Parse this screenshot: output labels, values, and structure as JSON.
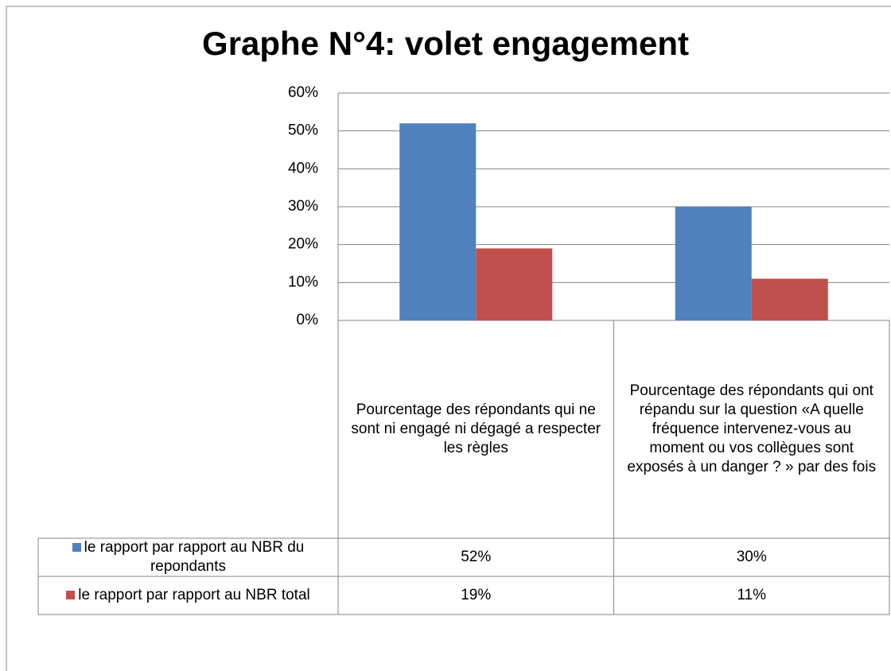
{
  "chart_data": {
    "type": "bar",
    "title": "Graphe N°4: volet engagement",
    "categories": [
      "Pourcentage des répondants qui ne sont ni engagé ni dégagé a respecter les règles",
      "Pourcentage des répondants qui ont répandu sur la question «A quelle fréquence intervenez-vous au moment ou vos collègues sont exposés à un danger ? » par des fois"
    ],
    "series": [
      {
        "name": "le rapport par rapport  au NBR du repondants",
        "color": "#4f81bd",
        "values": [
          52,
          30
        ],
        "value_labels": [
          "52%",
          "30%"
        ]
      },
      {
        "name": "le rapport par rapport  au NBR total",
        "color": "#c0504d",
        "values": [
          19,
          11
        ],
        "value_labels": [
          "19%",
          "11%"
        ]
      }
    ],
    "ylim": [
      0,
      60
    ],
    "yticks": [
      {
        "value": 0,
        "label": "0%"
      },
      {
        "value": 10,
        "label": "10%"
      },
      {
        "value": 20,
        "label": "20%"
      },
      {
        "value": 30,
        "label": "30%"
      },
      {
        "value": 40,
        "label": "40%"
      },
      {
        "value": 50,
        "label": "50%"
      },
      {
        "value": 60,
        "label": "60%"
      }
    ],
    "grid": true
  }
}
